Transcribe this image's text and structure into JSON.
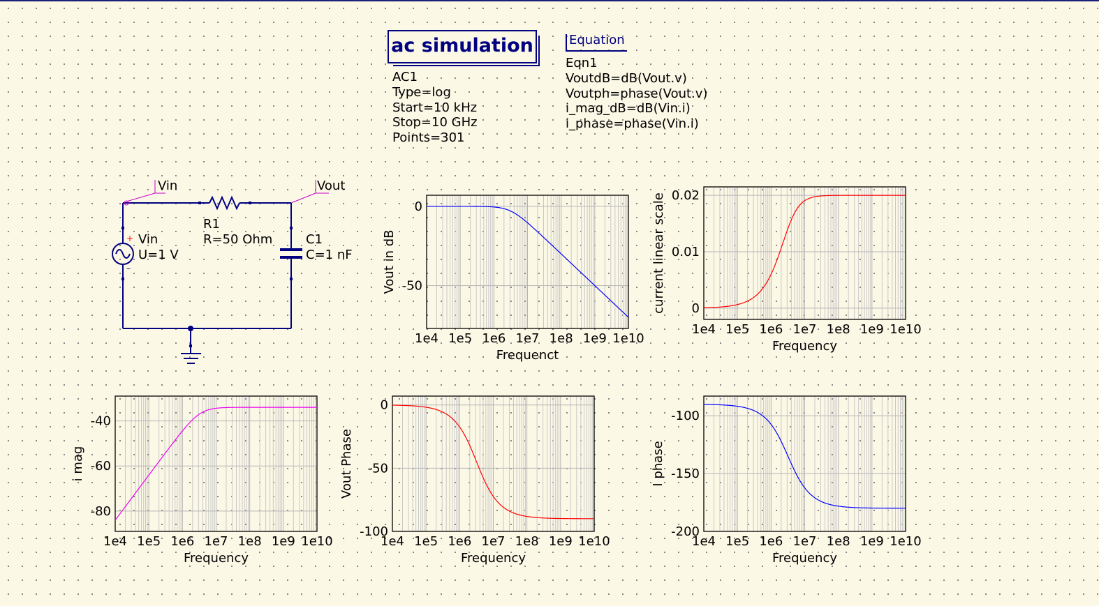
{
  "simulation": {
    "title": "ac simulation",
    "params": [
      "AC1",
      "Type=log",
      "Start=10 kHz",
      "Stop=10 GHz",
      "Points=301"
    ]
  },
  "equation": {
    "title": "Equation",
    "lines": [
      "Eqn1",
      "VoutdB=dB(Vout.v)",
      "Voutph=phase(Vout.v)",
      "i_mag_dB=dB(Vin.i)",
      "i_phase=phase(Vin.i)"
    ]
  },
  "schematic": {
    "vin_label": "Vin",
    "vout_label": "Vout",
    "r1_name": "R1",
    "r1_value": "R=50 Ohm",
    "c1_name": "C1",
    "c1_value": "C=1 nF",
    "source_name": "Vin",
    "source_value": "U=1 V",
    "wire_color": "#000080",
    "label_color": "#cc00cc",
    "source_plus_color": "#ff0000"
  },
  "chart_data": [
    {
      "type": "line",
      "name": "vout-db",
      "xlabel": "Frequenct",
      "ylabel": "Vout in dB",
      "xscale": "log",
      "xlim": [
        10000,
        10000000000
      ],
      "ylim": [
        -77,
        7
      ],
      "yticks": [
        0,
        -50
      ],
      "xticks": [
        "1e4",
        "1e5",
        "1e6",
        "1e7",
        "1e8",
        "1e9",
        "1e10"
      ],
      "color": "#0000ff",
      "formula": "lowpass_db",
      "x": [
        10000,
        100000,
        1000000,
        3183000,
        10000000,
        100000000,
        1000000000,
        10000000000
      ],
      "y": [
        0,
        0,
        -0.2,
        -3,
        -10.4,
        -30,
        -50,
        -70
      ]
    },
    {
      "type": "line",
      "name": "current-linear",
      "xlabel": "Frequency",
      "ylabel": "current linear scale",
      "xscale": "log",
      "xlim": [
        10000,
        10000000000
      ],
      "ylim": [
        -0.002,
        0.0215
      ],
      "yticks": [
        0.02,
        0.01,
        0
      ],
      "xticks": [
        "1e4",
        "1e5",
        "1e6",
        "1e7",
        "1e8",
        "1e9",
        "1e10"
      ],
      "color": "#ff0000",
      "formula": "current_lin",
      "x": [
        10000,
        100000,
        1000000,
        3183000,
        10000000,
        100000000,
        10000000000
      ],
      "y": [
        6.28e-05,
        0.00063,
        0.006,
        0.01414,
        0.0191,
        0.02,
        0.02
      ]
    },
    {
      "type": "line",
      "name": "i-mag",
      "xlabel": "Frequency",
      "ylabel": "i mag",
      "xscale": "log",
      "xlim": [
        10000,
        10000000000
      ],
      "ylim": [
        -89,
        -29
      ],
      "yticks": [
        -40,
        -60,
        -80
      ],
      "xticks": [
        "1e4",
        "1e5",
        "1e6",
        "1e7",
        "1e8",
        "1e9",
        "1e10"
      ],
      "color": "#ee00ee",
      "formula": "current_db",
      "x": [
        10000,
        100000,
        1000000,
        3183000,
        10000000,
        100000000,
        10000000000
      ],
      "y": [
        -84,
        -64,
        -44.4,
        -37,
        -34.4,
        -34,
        -34
      ]
    },
    {
      "type": "line",
      "name": "vout-phase",
      "xlabel": "Frequency",
      "ylabel": "Vout Phase",
      "xscale": "log",
      "xlim": [
        10000,
        10000000000
      ],
      "ylim": [
        -100,
        7
      ],
      "yticks": [
        0,
        -50,
        -100
      ],
      "xticks": [
        "1e4",
        "1e5",
        "1e6",
        "1e7",
        "1e8",
        "1e9",
        "1e10"
      ],
      "color": "#ff0000",
      "formula": "vout_phase",
      "x": [
        10000,
        100000,
        1000000,
        3183000,
        10000000,
        100000000,
        10000000000
      ],
      "y": [
        -0.2,
        -1.8,
        -17.4,
        -45,
        -72.3,
        -88.2,
        -90
      ]
    },
    {
      "type": "line",
      "name": "i-phase",
      "xlabel": "Frequency",
      "ylabel": "I phase",
      "xscale": "log",
      "xlim": [
        10000,
        10000000000
      ],
      "ylim": [
        -200,
        -83
      ],
      "yticks": [
        -100,
        -150,
        -200
      ],
      "xticks": [
        "1e4",
        "1e5",
        "1e6",
        "1e7",
        "1e8",
        "1e9",
        "1e10"
      ],
      "color": "#0000ff",
      "formula": "i_phase",
      "x": [
        10000,
        100000,
        1000000,
        3183000,
        10000000,
        100000000,
        10000000000
      ],
      "y": [
        -90.2,
        -91.8,
        -107.4,
        -135,
        -162.3,
        -178.2,
        -180
      ]
    }
  ]
}
